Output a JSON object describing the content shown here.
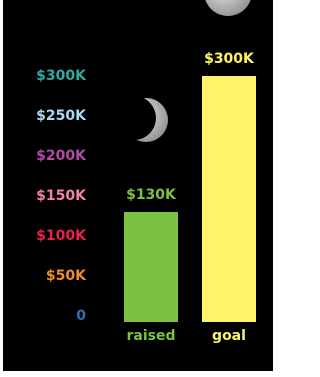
{
  "chart_data": {
    "type": "bar",
    "categories": [
      "raised",
      "goal"
    ],
    "values": [
      130000,
      300000
    ],
    "value_labels": [
      "$130K",
      "$300K"
    ],
    "colors": [
      "#7cc142",
      "#fff36b"
    ],
    "ylim": [
      0,
      300000
    ],
    "yticks": [
      0,
      {
        "value": 50000,
        "label": "$50K"
      },
      {
        "value": 100000,
        "label": "$100K"
      },
      {
        "value": 150000,
        "label": "$150K"
      },
      {
        "value": 200000,
        "label": "$200K"
      },
      {
        "value": 250000,
        "label": "$250K"
      },
      {
        "value": 300000,
        "label": "$300K"
      }
    ],
    "ytick_colors": [
      "#2f6fb8",
      "#f08c2c",
      "#e8204e",
      "#f27fae",
      "#b24aa6",
      "#a9d9f2",
      "#2eaaa2"
    ],
    "grid": false
  }
}
